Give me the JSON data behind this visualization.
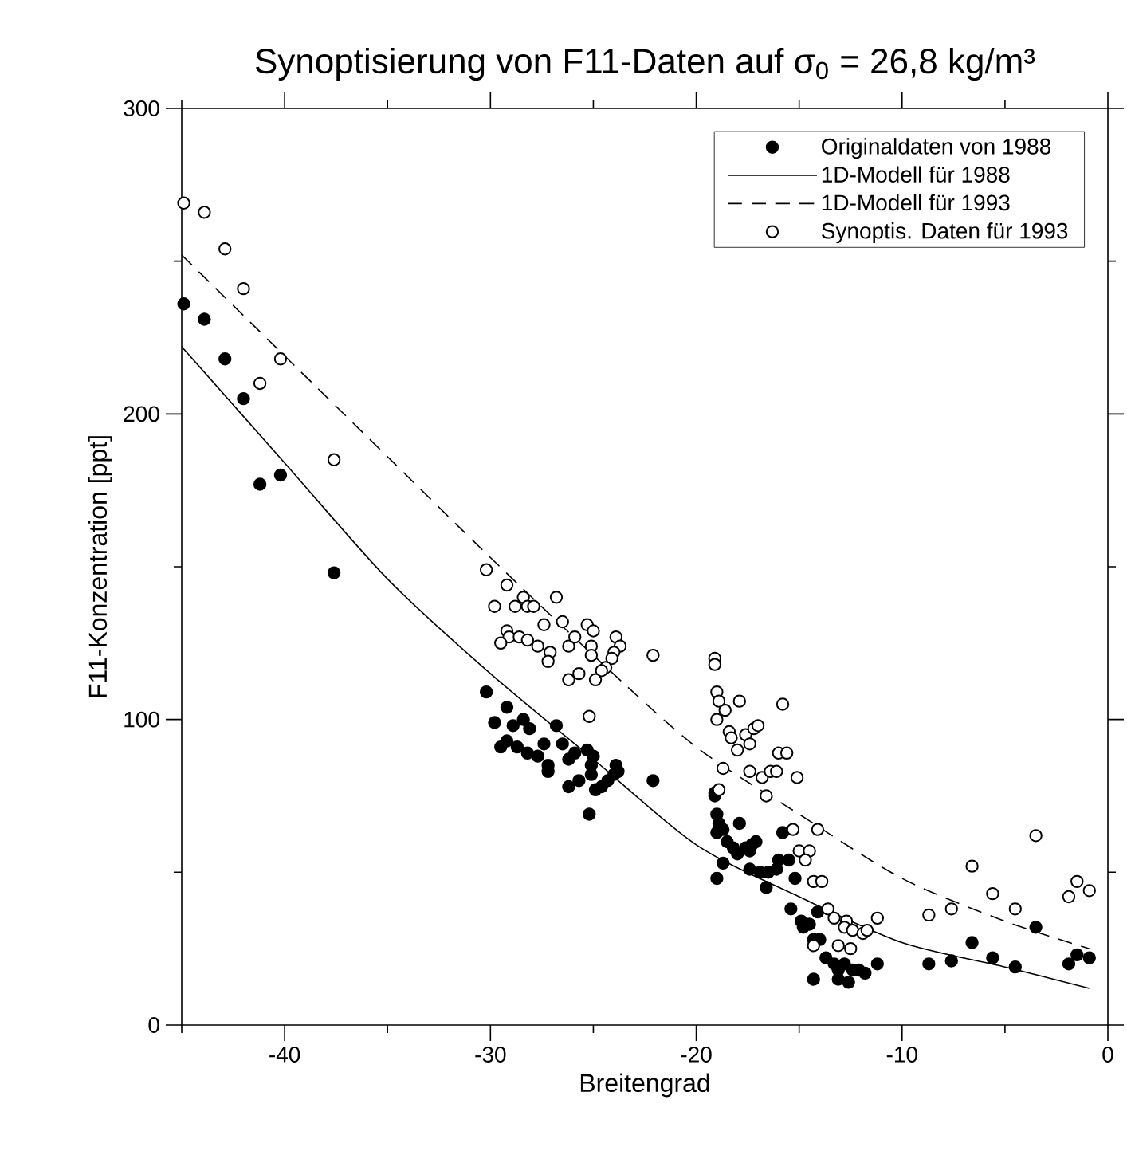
{
  "chart_data": {
    "type": "scatter",
    "title": "Synoptisierung von F11-Daten auf σ$_{0}$ = 26,8 kg/m³",
    "xlabel": "Breitengrad",
    "ylabel": "F11-Konzentration [ppt]",
    "xlim": [
      -45,
      0
    ],
    "ylim": [
      0,
      300
    ],
    "xticks": [
      {
        "value": -45,
        "label": null
      },
      -40,
      {
        "value": -35,
        "label": null
      },
      -30,
      {
        "value": -25,
        "label": null
      },
      -20,
      {
        "value": -15,
        "label": null
      },
      -10,
      {
        "value": -5,
        "label": null
      },
      0
    ],
    "yticks": [
      0,
      {
        "value": 50,
        "label": null
      },
      100,
      {
        "value": 150,
        "label": null
      },
      200,
      {
        "value": 250,
        "label": null
      },
      300
    ],
    "legend": "top right",
    "marker": "circle",
    "series": [
      {
        "name": "Originaldaten von 1988",
        "color": "#000000",
        "x": [
          -44.9,
          -43.9,
          -42.9,
          -42.0,
          -41.2,
          -40.2,
          -37.6,
          -30.2,
          -29.2,
          -29.8,
          -28.9,
          -28.4,
          -28.1,
          -26.8,
          -29.5,
          -29.2,
          -28.7,
          -28.2,
          -27.7,
          -27.4,
          -27.2,
          -27.2,
          -26.5,
          -26.2,
          -25.9,
          -25.3,
          -25.0,
          -25.1,
          -25.1,
          -23.9,
          -23.8,
          -24.0,
          -24.3,
          -24.6,
          -24.9,
          -25.7,
          -26.2,
          -22.1,
          -25.2,
          -19.1,
          -19.1,
          -19.0,
          -18.9,
          -18.7,
          -19.0,
          -17.9,
          -18.5,
          -18.2,
          -18.0,
          -17.6,
          -17.3,
          -17.1,
          -17.4,
          -15.8,
          -18.7,
          -19.0,
          -17.4,
          -16.9,
          -16.5,
          -16.1,
          -16.0,
          -15.5,
          -16.6,
          -15.2,
          -15.4,
          -14.9,
          -14.8,
          -14.5,
          -14.1,
          -14.3,
          -14.0,
          -13.7,
          -13.3,
          -13.1,
          -12.8,
          -12.4,
          -12.1,
          -11.8,
          -11.2,
          -14.3,
          -13.1,
          -12.6,
          -8.7,
          -7.6,
          -6.6,
          -5.6,
          -4.5,
          -3.5,
          -1.9,
          -1.5,
          -0.9
        ],
        "values": [
          236,
          231,
          218,
          205,
          177,
          180,
          148,
          109,
          104,
          99,
          98,
          100,
          97,
          98,
          91,
          93,
          91,
          89,
          88,
          92,
          85,
          83,
          92,
          87,
          89,
          90,
          88,
          85,
          82,
          85,
          83,
          82,
          80,
          78,
          77,
          80,
          78,
          80,
          69,
          76,
          75,
          69,
          66,
          64,
          63,
          66,
          60,
          58,
          56,
          58,
          59,
          60,
          57,
          63,
          53,
          48,
          51,
          50,
          50,
          51,
          54,
          54,
          45,
          48,
          38,
          34,
          32,
          33,
          37,
          28,
          28,
          22,
          20,
          18,
          20,
          18,
          18,
          17,
          20,
          15,
          15,
          14,
          20,
          21,
          27,
          22,
          19,
          32,
          20,
          23,
          22
        ]
      },
      {
        "name": "1D-Modell für 1988",
        "type": "line",
        "marker": "none",
        "line_style": "solid",
        "color": "#000000",
        "x": [
          -45,
          -40,
          -35,
          -30,
          -25,
          -20,
          -15,
          -10,
          -5,
          -0.9
        ],
        "values": [
          222,
          184,
          146,
          115,
          87,
          59,
          42,
          27,
          19,
          12
        ]
      },
      {
        "name": "1D-Modell für 1993",
        "type": "line",
        "marker": "none",
        "line_style": "dashed",
        "color": "#000000",
        "x": [
          -45,
          -40,
          -35,
          -30,
          -25,
          -20,
          -15,
          -10,
          -5,
          -0.9
        ],
        "values": [
          252,
          219,
          186,
          153,
          121,
          91,
          69,
          48,
          34,
          25
        ]
      },
      {
        "name": "Synoptis. Daten für 1993",
        "color": "#ffffff",
        "x": [
          -44.9,
          -43.9,
          -42.9,
          -42.0,
          -41.2,
          -40.2,
          -37.6,
          -30.2,
          -29.2,
          -29.8,
          -28.8,
          -28.4,
          -28.2,
          -27.9,
          -26.8,
          -29.2,
          -29.1,
          -29.5,
          -28.6,
          -28.2,
          -27.7,
          -27.4,
          -27.1,
          -27.2,
          -26.5,
          -26.2,
          -25.9,
          -25.3,
          -25.0,
          -25.1,
          -25.1,
          -23.9,
          -23.7,
          -24.0,
          -24.1,
          -24.4,
          -24.6,
          -25.7,
          -26.2,
          -24.9,
          -22.1,
          -25.2,
          -19.1,
          -19.1,
          -19.0,
          -18.9,
          -18.6,
          -17.9,
          -15.8,
          -19.0,
          -18.4,
          -18.3,
          -18.0,
          -17.6,
          -17.4,
          -17.2,
          -17.0,
          -16.0,
          -15.6,
          -18.7,
          -17.4,
          -16.8,
          -16.4,
          -16.1,
          -15.1,
          -16.6,
          -18.9,
          -15.3,
          -14.1,
          -15.0,
          -14.5,
          -14.7,
          -14.3,
          -13.9,
          -13.6,
          -13.3,
          -12.7,
          -12.8,
          -12.4,
          -11.9,
          -11.7,
          -11.2,
          -13.1,
          -12.5,
          -14.3,
          -8.7,
          -7.6,
          -6.6,
          -5.6,
          -4.5,
          -3.5,
          -1.9,
          -1.5,
          -0.9
        ],
        "values": [
          269,
          266,
          254,
          241,
          210,
          218,
          185,
          149,
          144,
          137,
          137,
          140,
          137,
          137,
          140,
          129,
          127,
          125,
          127,
          126,
          124,
          131,
          122,
          119,
          132,
          124,
          127,
          131,
          129,
          124,
          121,
          127,
          124,
          122,
          120,
          117,
          116,
          115,
          113,
          113,
          121,
          101,
          120,
          118,
          109,
          106,
          103,
          106,
          105,
          100,
          96,
          94,
          90,
          95,
          92,
          97,
          98,
          89,
          89,
          84,
          83,
          81,
          83,
          83,
          81,
          75,
          77,
          64,
          64,
          57,
          57,
          54,
          47,
          47,
          38,
          35,
          34,
          32,
          31,
          30,
          31,
          35,
          26,
          25,
          26,
          36,
          38,
          52,
          43,
          38,
          62,
          42,
          47,
          44
        ]
      }
    ]
  }
}
